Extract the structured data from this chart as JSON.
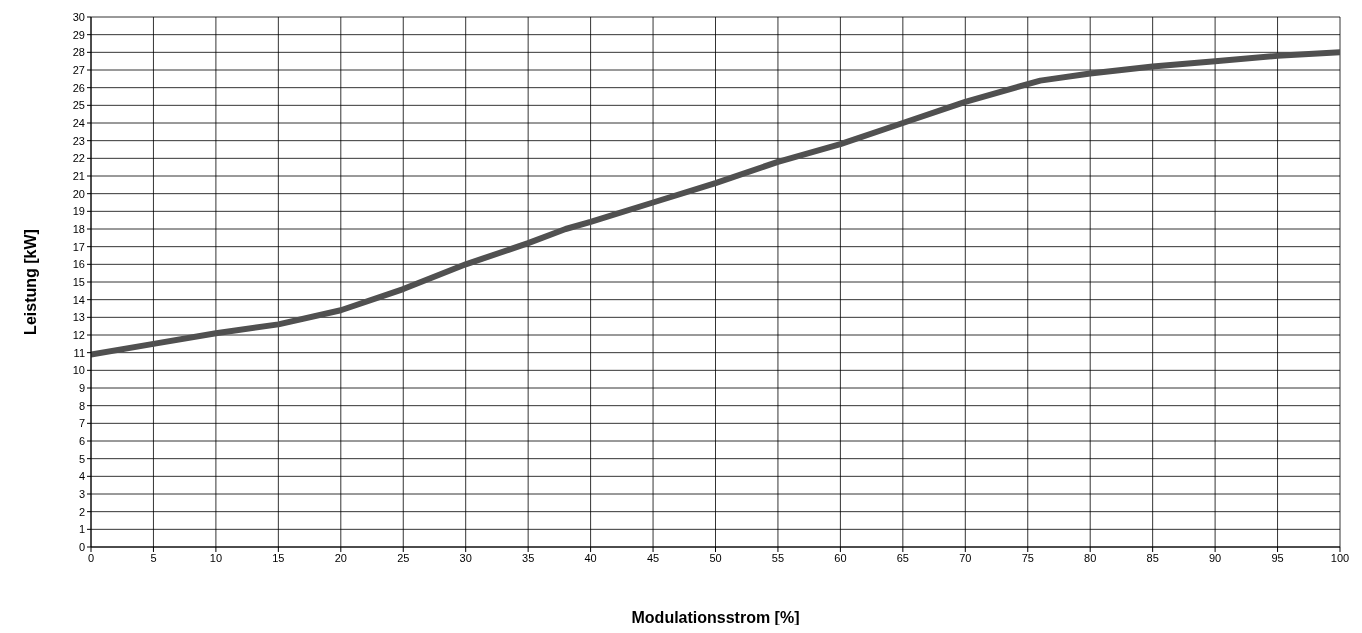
{
  "chart_data": {
    "type": "line",
    "xlabel": "Modulationsstrom [%]",
    "ylabel": "Leistung [kW]",
    "x": [
      0,
      5,
      10,
      15,
      20,
      25,
      30,
      35,
      38,
      40,
      45,
      50,
      55,
      60,
      65,
      70,
      76,
      80,
      85,
      90,
      95,
      100
    ],
    "series": [
      {
        "color": "#505050",
        "values": [
          10.9,
          11.5,
          12.1,
          12.6,
          13.4,
          14.6,
          16,
          17.2,
          18,
          18.4,
          19.5,
          20.6,
          21.8,
          22.8,
          24,
          25.2,
          26.4,
          26.8,
          27.2,
          27.5,
          27.8,
          28
        ]
      }
    ],
    "xlim": [
      0,
      100
    ],
    "xticks": [
      0,
      5,
      10,
      15,
      20,
      25,
      30,
      35,
      40,
      45,
      50,
      55,
      60,
      65,
      70,
      75,
      80,
      85,
      90,
      95,
      100
    ],
    "ylim": [
      0,
      30
    ],
    "yticks": [
      0,
      1,
      2,
      3,
      4,
      5,
      6,
      7,
      8,
      9,
      10,
      11,
      12,
      13,
      14,
      15,
      16,
      17,
      18,
      19,
      20,
      21,
      22,
      23,
      24,
      25,
      26,
      27,
      28,
      29,
      30
    ],
    "grid": true
  }
}
